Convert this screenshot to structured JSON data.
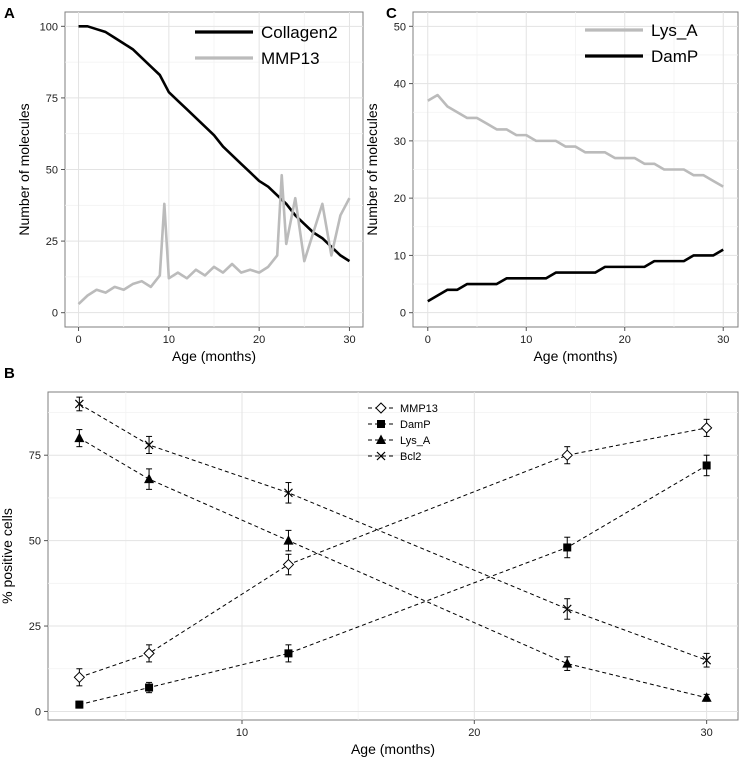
{
  "panels": {
    "A": {
      "letter": "A"
    },
    "B": {
      "letter": "B"
    },
    "C": {
      "letter": "C"
    }
  },
  "chart_data": [
    {
      "id": "A",
      "type": "line",
      "xlabel": "Age (months)",
      "ylabel": "Number of molecules",
      "xlim": [
        -1.5,
        31.5
      ],
      "ylim": [
        -5,
        105
      ],
      "xticks": [
        0,
        10,
        20,
        30
      ],
      "yticks": [
        0,
        25,
        50,
        75,
        100
      ],
      "grid": true,
      "legend_position": "top-right",
      "series": [
        {
          "name": "Collagen2",
          "color": "#000000",
          "x": [
            0,
            1,
            2,
            3,
            4,
            5,
            6,
            7,
            8,
            9,
            10,
            11,
            12,
            13,
            14,
            15,
            16,
            17,
            18,
            19,
            20,
            21,
            22,
            23,
            24,
            25,
            26,
            27,
            28,
            29,
            30
          ],
          "y": [
            100,
            100,
            99,
            98,
            96,
            94,
            92,
            89,
            86,
            83,
            77,
            74,
            71,
            68,
            65,
            62,
            58,
            55,
            52,
            49,
            46,
            44,
            41,
            38,
            34,
            31,
            28,
            26,
            23,
            20,
            18
          ]
        },
        {
          "name": "MMP13",
          "color": "#bbbbbb",
          "x": [
            0,
            1,
            2,
            3,
            4,
            5,
            6,
            7,
            8,
            9,
            9.5,
            10,
            11,
            12,
            13,
            14,
            15,
            16,
            17,
            18,
            19,
            20,
            21,
            22,
            22.5,
            23,
            24,
            25,
            26,
            27,
            28,
            29,
            30
          ],
          "y": [
            3,
            6,
            8,
            7,
            9,
            8,
            10,
            11,
            9,
            13,
            38,
            12,
            14,
            12,
            15,
            13,
            16,
            14,
            17,
            14,
            15,
            14,
            16,
            20,
            48,
            24,
            40,
            18,
            28,
            38,
            20,
            34,
            40
          ]
        }
      ]
    },
    {
      "id": "C",
      "type": "line",
      "xlabel": "Age (months)",
      "ylabel": "Number of molecules",
      "xlim": [
        -1.5,
        31.5
      ],
      "ylim": [
        -2.5,
        52.5
      ],
      "xticks": [
        0,
        10,
        20,
        30
      ],
      "yticks": [
        0,
        10,
        20,
        30,
        40,
        50
      ],
      "grid": true,
      "legend_position": "top-right",
      "series": [
        {
          "name": "Lys_A",
          "color": "#bbbbbb",
          "x": [
            0,
            1,
            2,
            3,
            4,
            5,
            6,
            7,
            8,
            9,
            10,
            11,
            12,
            13,
            14,
            15,
            16,
            17,
            18,
            19,
            20,
            21,
            22,
            23,
            24,
            25,
            26,
            27,
            28,
            29,
            30
          ],
          "y": [
            37,
            38,
            36,
            35,
            34,
            34,
            33,
            32,
            32,
            31,
            31,
            30,
            30,
            30,
            29,
            29,
            28,
            28,
            28,
            27,
            27,
            27,
            26,
            26,
            25,
            25,
            25,
            24,
            24,
            23,
            22
          ]
        },
        {
          "name": "DamP",
          "color": "#000000",
          "x": [
            0,
            1,
            2,
            3,
            4,
            5,
            6,
            7,
            8,
            9,
            10,
            11,
            12,
            13,
            14,
            15,
            16,
            17,
            18,
            19,
            20,
            21,
            22,
            23,
            24,
            25,
            26,
            27,
            28,
            29,
            30
          ],
          "y": [
            2,
            3,
            4,
            4,
            5,
            5,
            5,
            5,
            6,
            6,
            6,
            6,
            6,
            7,
            7,
            7,
            7,
            7,
            8,
            8,
            8,
            8,
            8,
            9,
            9,
            9,
            9,
            10,
            10,
            10,
            11
          ]
        }
      ]
    },
    {
      "id": "B",
      "type": "scatter",
      "xlabel": "Age (months)",
      "ylabel": "% positive cells",
      "xlim": [
        1.65,
        31.35
      ],
      "ylim": [
        -2.5,
        93.5
      ],
      "xticks": [
        10,
        20,
        30
      ],
      "yticks": [
        0,
        25,
        50,
        75
      ],
      "grid": true,
      "legend_position": "top-center",
      "line_style": "dashed",
      "series": [
        {
          "name": "MMP13",
          "marker": "open-diamond",
          "x": [
            3,
            6,
            12,
            24,
            30
          ],
          "y": [
            10,
            17,
            43,
            75,
            83
          ],
          "err": [
            2.5,
            2.5,
            3,
            2.5,
            2.5
          ]
        },
        {
          "name": "DamP",
          "marker": "filled-square",
          "x": [
            3,
            6,
            12,
            24,
            30
          ],
          "y": [
            2,
            7,
            17,
            48,
            72
          ],
          "err": [
            1,
            1.5,
            2.5,
            3,
            3
          ]
        },
        {
          "name": "Lys_A",
          "marker": "filled-triangle",
          "x": [
            3,
            6,
            12,
            24,
            30
          ],
          "y": [
            80,
            68,
            50,
            14,
            4
          ],
          "err": [
            2.5,
            3,
            3,
            2,
            1
          ]
        },
        {
          "name": "Bcl2",
          "marker": "cross",
          "x": [
            3,
            6,
            12,
            24,
            30
          ],
          "y": [
            90,
            78,
            64,
            30,
            15
          ],
          "err": [
            2,
            2.5,
            3,
            3,
            2
          ]
        }
      ]
    }
  ]
}
